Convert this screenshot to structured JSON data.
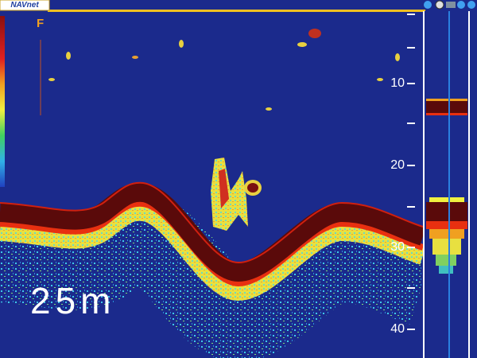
{
  "header": {
    "logo": "NAVnet"
  },
  "display": {
    "mode": "F",
    "depth_readout": "25m",
    "depth_scale": [
      10,
      20,
      30,
      40
    ]
  }
}
